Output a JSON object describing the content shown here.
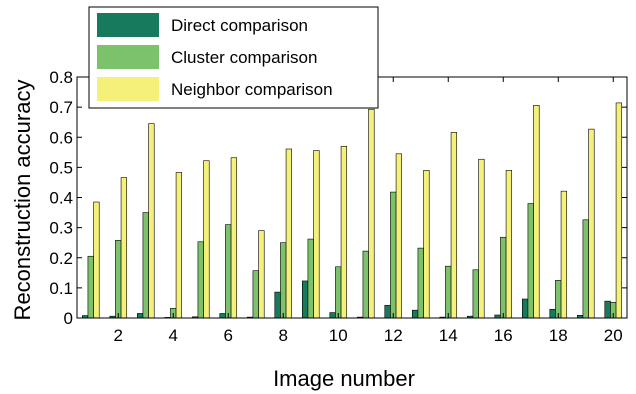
{
  "chart_data": {
    "type": "bar",
    "title": "",
    "xlabel": "Image number",
    "ylabel": "Reconstruction accuracy",
    "categories": [
      1,
      2,
      3,
      4,
      5,
      6,
      7,
      8,
      9,
      10,
      11,
      12,
      13,
      14,
      15,
      16,
      17,
      18,
      19,
      20
    ],
    "x_tick_labels": [
      "2",
      "4",
      "6",
      "8",
      "10",
      "12",
      "14",
      "16",
      "18",
      "20"
    ],
    "x_tick_values": [
      2,
      4,
      6,
      8,
      10,
      12,
      14,
      16,
      18,
      20
    ],
    "y_tick_labels": [
      "0",
      "0.1",
      "0.2",
      "0.3",
      "0.4",
      "0.5",
      "0.6",
      "0.7",
      "0.8"
    ],
    "y_tick_values": [
      0,
      0.1,
      0.2,
      0.3,
      0.4,
      0.5,
      0.6,
      0.7,
      0.8
    ],
    "ylim": [
      0,
      0.8
    ],
    "xlim": [
      0.5,
      20.5
    ],
    "grid": false,
    "legend_position": "top-left",
    "series": [
      {
        "name": "Direct comparison",
        "color": "#187a5c",
        "values": [
          0.008,
          0.006,
          0.015,
          0.002,
          0.004,
          0.015,
          0.003,
          0.086,
          0.123,
          0.018,
          0.003,
          0.042,
          0.026,
          0.003,
          0.006,
          0.01,
          0.063,
          0.029,
          0.009,
          0.056
        ]
      },
      {
        "name": "Cluster comparison",
        "color": "#7cc26a",
        "values": [
          0.205,
          0.258,
          0.35,
          0.032,
          0.253,
          0.31,
          0.157,
          0.25,
          0.262,
          0.17,
          0.222,
          0.418,
          0.232,
          0.172,
          0.16,
          0.268,
          0.38,
          0.125,
          0.326,
          0.052
        ]
      },
      {
        "name": "Neighbor comparison",
        "color": "#f5f07a",
        "values": [
          0.385,
          0.466,
          0.645,
          0.483,
          0.522,
          0.532,
          0.29,
          0.561,
          0.556,
          0.57,
          0.693,
          0.545,
          0.49,
          0.616,
          0.527,
          0.49,
          0.706,
          0.421,
          0.627,
          0.714
        ]
      }
    ]
  }
}
